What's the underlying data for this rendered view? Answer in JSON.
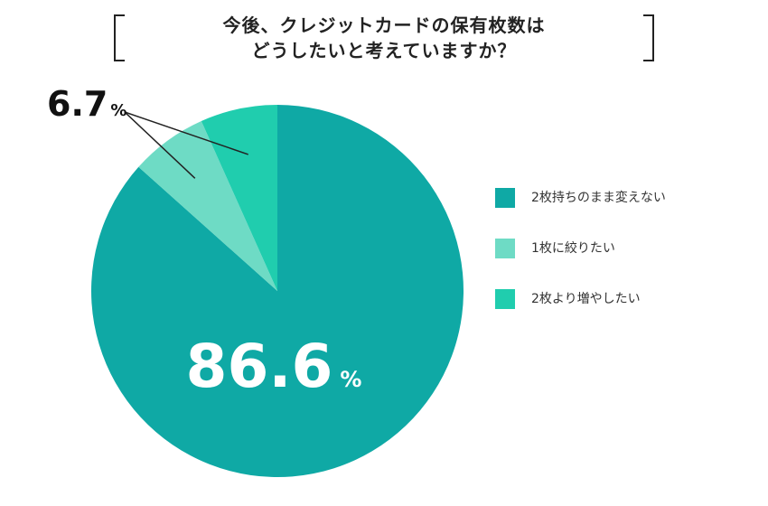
{
  "chart_data": {
    "type": "pie",
    "title_lines": [
      "今後、クレジットカードの保有枚数は",
      "どうしたいと考えていますか？"
    ],
    "slices": [
      {
        "label": "2枚持ちのまま変えない",
        "value": 86.6,
        "color": "#0fa9a5"
      },
      {
        "label": "1枚に絞りたい",
        "value": 6.7,
        "color": "#6edbc5"
      },
      {
        "label": "2枚より増やしたい",
        "value": 6.7,
        "color": "#20cdae"
      }
    ],
    "data_labels": [
      {
        "number": "86.6",
        "unit": "%"
      },
      {
        "number": "6.7",
        "unit": "%"
      }
    ],
    "legend_position": "right"
  }
}
